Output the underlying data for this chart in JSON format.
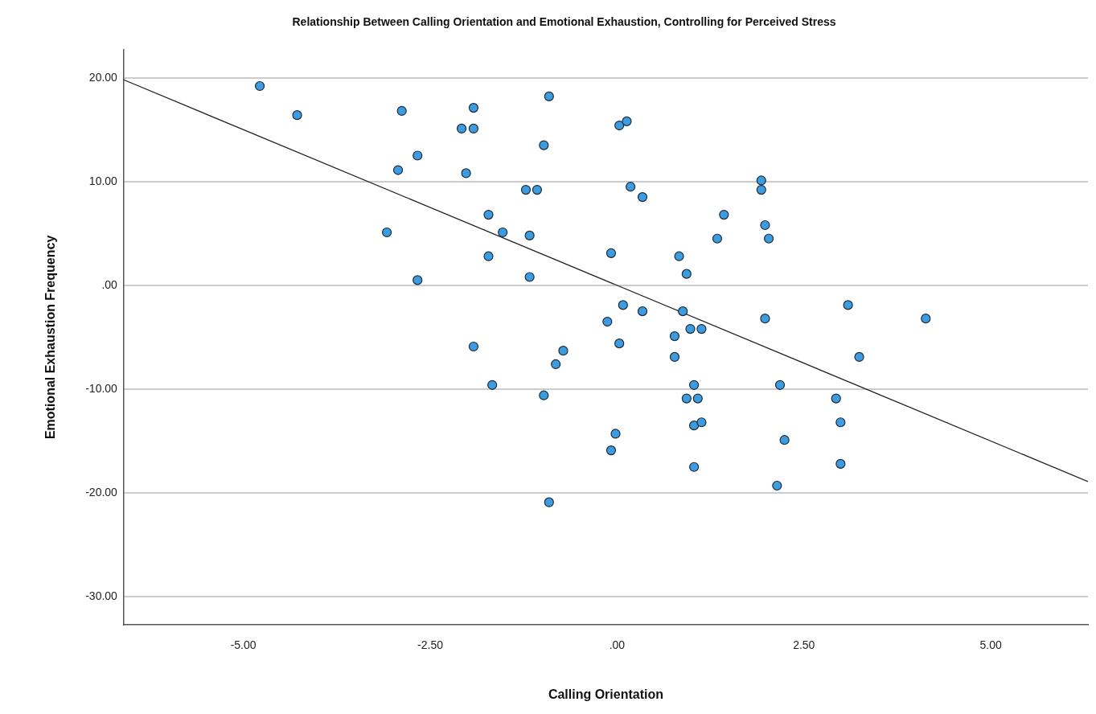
{
  "chart_data": {
    "type": "scatter",
    "title": "Relationship Between Calling Orientation and Emotional Exhaustion, Controlling for Perceived Stress",
    "xlabel": "Calling Orientation",
    "ylabel": "Emotional Exhaustion Frequency",
    "xlim": [
      -6.6,
      6.3
    ],
    "ylim": [
      -32.7,
      22.7
    ],
    "xticks": [
      {
        "value": -5,
        "label": "-5.00"
      },
      {
        "value": -2.5,
        "label": "-2.50"
      },
      {
        "value": 0,
        "label": ".00"
      },
      {
        "value": 2.5,
        "label": "2.50"
      },
      {
        "value": 5,
        "label": "5.00"
      }
    ],
    "yticks": [
      {
        "value": -30,
        "label": "-30.00"
      },
      {
        "value": -20,
        "label": "-20.00"
      },
      {
        "value": -10,
        "label": "-10.00"
      },
      {
        "value": 0,
        "label": ".00"
      },
      {
        "value": 10,
        "label": "10.00"
      },
      {
        "value": 20,
        "label": "20.00"
      }
    ],
    "grid": "y",
    "legend": false,
    "series": [
      {
        "color": "#3d9be0",
        "marker": "circle",
        "x": [
          -4.78,
          -4.28,
          -2.88,
          -2.67,
          -2.93,
          -3.08,
          -2.67,
          -2.08,
          -1.92,
          -1.92,
          -2.02,
          -1.72,
          -1.53,
          -1.72,
          -1.92,
          -1.67,
          -1.22,
          -1.07,
          -0.98,
          -0.91,
          -1.17,
          -1.17,
          -0.72,
          -0.82,
          -0.98,
          -0.91,
          0.03,
          0.13,
          0.18,
          0.34,
          -0.08,
          0.08,
          0.34,
          -0.13,
          0.03,
          -0.02,
          -0.08,
          0.83,
          0.93,
          0.88,
          0.98,
          1.13,
          0.77,
          0.77,
          1.03,
          0.93,
          1.08,
          1.03,
          1.13,
          1.03,
          1.34,
          1.43,
          1.93,
          1.93,
          1.98,
          2.03,
          1.98,
          2.18,
          2.24,
          2.14,
          2.93,
          2.99,
          2.99,
          3.09,
          3.24,
          4.13
        ],
        "values": [
          19.2,
          16.4,
          16.8,
          12.5,
          11.1,
          5.1,
          0.5,
          15.1,
          15.1,
          17.1,
          10.8,
          6.8,
          5.1,
          2.8,
          -5.9,
          -9.6,
          9.2,
          9.2,
          13.5,
          18.2,
          4.8,
          0.8,
          -6.3,
          -7.6,
          -10.6,
          -20.9,
          15.4,
          15.8,
          9.5,
          8.5,
          3.1,
          -1.9,
          -2.5,
          -3.5,
          -5.6,
          -14.3,
          -15.9,
          2.8,
          1.1,
          -2.5,
          -4.2,
          -4.2,
          -4.9,
          -6.9,
          -9.6,
          -10.9,
          -10.9,
          -13.5,
          -13.2,
          -17.5,
          4.5,
          6.8,
          10.1,
          9.2,
          5.8,
          4.5,
          -3.2,
          -9.6,
          -14.9,
          -19.3,
          -10.9,
          -13.2,
          -17.2,
          -1.9,
          -6.9,
          -3.2
        ]
      },
      {
        "type": "line",
        "marker": "none",
        "color": "#222222",
        "x": [
          -6.6,
          6.3
        ],
        "values": [
          19.8,
          -18.9
        ]
      }
    ]
  }
}
